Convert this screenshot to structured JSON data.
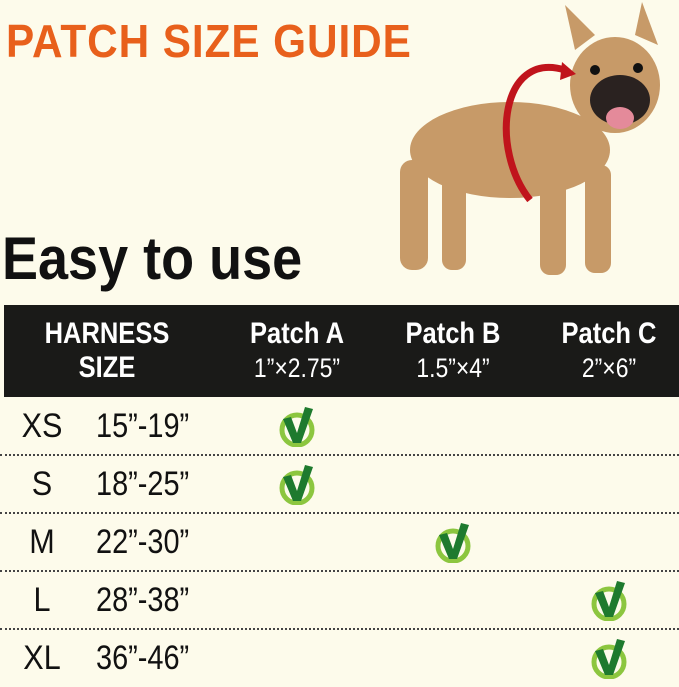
{
  "title": "PATCH SIZE GUIDE",
  "subtitle": "Easy to use",
  "colors": {
    "title": "#e8601c",
    "background": "#fdfbeb",
    "header": "#1a1a18",
    "check_dark": "#1e7a2e",
    "check_light": "#8cc63f",
    "arrow": "#c0141c"
  },
  "table": {
    "header": {
      "size": [
        "HARNESS",
        "SIZE"
      ],
      "patches": [
        {
          "name": "Patch A",
          "dims": "1”×2.75”"
        },
        {
          "name": "Patch B",
          "dims": "1.5”×4”"
        },
        {
          "name": "Patch C",
          "dims": "2”×6”"
        }
      ]
    },
    "rows": [
      {
        "size": "XS",
        "range": "15”-19”",
        "patch": 0
      },
      {
        "size": "S",
        "range": "18”-25”",
        "patch": 0
      },
      {
        "size": "M",
        "range": "22”-30”",
        "patch": 1
      },
      {
        "size": "L",
        "range": "28”-38”",
        "patch": 2
      },
      {
        "size": "XL",
        "range": "36”-46”",
        "patch": 2
      }
    ],
    "check_icon": "check-mark-icon"
  }
}
